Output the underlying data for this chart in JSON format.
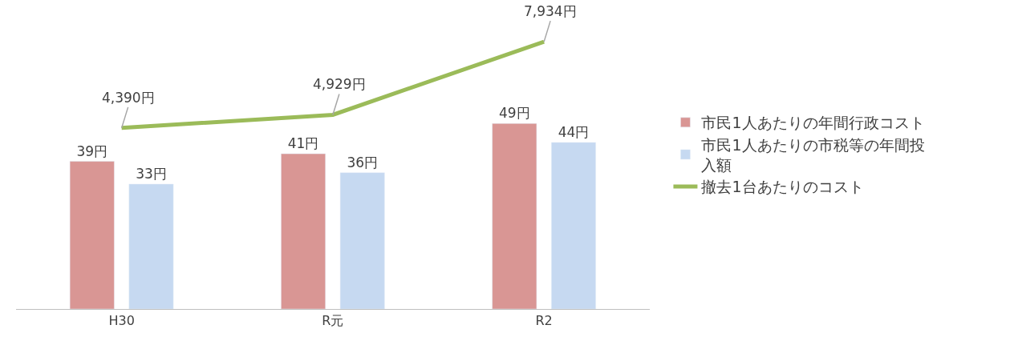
{
  "chart_data": {
    "type": "bar",
    "categories": [
      "H30",
      "R元",
      "R2"
    ],
    "series": [
      {
        "name": "市民1人あたりの年間行政コスト",
        "color": "#d99694",
        "values": [
          39,
          41,
          49
        ],
        "value_labels": [
          "39円",
          "41円",
          "49円"
        ]
      },
      {
        "name": "市民1人あたりの市税等の年間投入額",
        "color": "#c6d9f1",
        "values": [
          33,
          36,
          44
        ],
        "value_labels": [
          "33円",
          "36円",
          "44円"
        ]
      },
      {
        "name": "撤去1台あたりのコスト",
        "type": "line",
        "axis": "y2",
        "color": "#9bbb59",
        "values": [
          4390,
          4929,
          7934
        ],
        "value_labels": [
          "4,390円",
          "4,929円",
          "7,934円"
        ],
        "marker": "none",
        "line_style": "solid"
      }
    ],
    "legend": "right",
    "tick_labels": "x"
  }
}
